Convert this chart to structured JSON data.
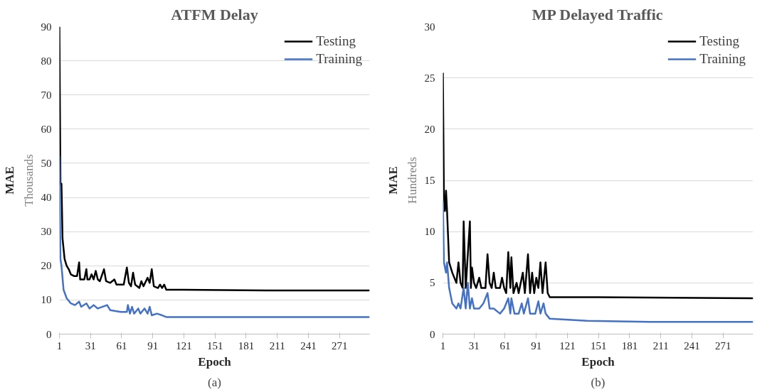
{
  "chart_data": [
    {
      "type": "line",
      "title": "ATFM Delay",
      "xlabel": "Epoch",
      "ylabel": "MAE",
      "annotations": [
        "Thousands",
        "(a)"
      ],
      "xlim": [
        1,
        300
      ],
      "xticks": [
        1,
        31,
        61,
        91,
        121,
        151,
        181,
        211,
        241,
        271
      ],
      "ylim": [
        0,
        90
      ],
      "yticks": [
        0,
        10,
        20,
        30,
        40,
        50,
        60,
        70,
        80,
        90
      ],
      "grid": "y",
      "legend": "top right",
      "series": [
        {
          "name": "Testing",
          "color": "#000000",
          "x": [
            1,
            2,
            3,
            4,
            6,
            8,
            10,
            12,
            15,
            18,
            20,
            21,
            25,
            27,
            28,
            30,
            32,
            34,
            36,
            38,
            40,
            44,
            46,
            50,
            54,
            56,
            60,
            63,
            66,
            68,
            70,
            72,
            74,
            78,
            80,
            82,
            86,
            88,
            90,
            92,
            96,
            98,
            100,
            102,
            104,
            120,
            160,
            200,
            300
          ],
          "values": [
            90,
            44,
            44,
            28,
            22,
            20,
            19,
            17.5,
            17,
            17,
            21,
            16,
            16,
            19,
            16,
            16,
            17.5,
            16,
            18.5,
            16,
            15.5,
            19,
            15.5,
            15,
            16,
            14.5,
            14.5,
            14.5,
            19.5,
            15,
            14,
            18,
            14.5,
            13.5,
            15.5,
            14,
            16.5,
            15,
            19,
            14,
            13.5,
            14.5,
            13.5,
            14.5,
            13,
            13,
            12.9,
            12.8,
            12.8
          ]
        },
        {
          "name": "Training",
          "color": "#4472c4",
          "x": [
            1,
            2,
            3,
            5,
            8,
            12,
            16,
            20,
            22,
            27,
            30,
            34,
            38,
            47,
            50,
            60,
            66,
            67,
            69,
            71,
            73,
            77,
            79,
            83,
            86,
            88,
            90,
            95,
            100,
            104,
            160,
            300
          ],
          "values": [
            52,
            22,
            20,
            13,
            10.5,
            9,
            8.5,
            9.5,
            8,
            9,
            7.5,
            8.5,
            7.5,
            8.5,
            7,
            6.5,
            6.5,
            8.5,
            6,
            8,
            6,
            7.5,
            6,
            7.5,
            6,
            8,
            5.5,
            6,
            5.5,
            5,
            5,
            5
          ]
        }
      ]
    },
    {
      "type": "line",
      "title": "MP Delayed Traffic",
      "xlabel": "Epoch",
      "ylabel": "MAE",
      "annotations": [
        "Hundreds",
        "(b)"
      ],
      "xlim": [
        1,
        300
      ],
      "xticks": [
        1,
        31,
        61,
        91,
        121,
        151,
        181,
        211,
        241,
        271
      ],
      "ylim": [
        0,
        30
      ],
      "yticks": [
        0,
        5,
        10,
        15,
        20,
        25,
        30
      ],
      "grid": "y",
      "legend": "top right",
      "series": [
        {
          "name": "Testing",
          "color": "#000000",
          "x": [
            1,
            2,
            3,
            4,
            5,
            7,
            10,
            14,
            16,
            18,
            20,
            21,
            23,
            27,
            28,
            29,
            31,
            33,
            36,
            38,
            42,
            44,
            46,
            48,
            50,
            52,
            56,
            58,
            60,
            62,
            64,
            66,
            67,
            69,
            72,
            74,
            78,
            80,
            83,
            85,
            87,
            89,
            91,
            93,
            95,
            97,
            100,
            102,
            104,
            150,
            300
          ],
          "values": [
            25.5,
            13,
            12,
            14,
            12,
            7,
            6,
            5,
            7,
            5,
            4.5,
            11,
            4.5,
            11,
            4.5,
            6.5,
            5,
            4.5,
            5.5,
            4.5,
            4.5,
            7.8,
            5,
            4.5,
            6,
            4.5,
            4.5,
            5.5,
            4.5,
            4,
            8,
            4.5,
            7.5,
            4,
            5,
            4,
            6,
            4,
            7.8,
            4,
            6,
            4,
            5.5,
            4.5,
            7,
            4,
            7,
            4,
            3.6,
            3.6,
            3.5
          ]
        },
        {
          "name": "Training",
          "color": "#4472c4",
          "x": [
            1,
            2,
            4,
            5,
            7,
            10,
            14,
            16,
            18,
            21,
            23,
            25,
            27,
            29,
            31,
            36,
            40,
            44,
            46,
            50,
            56,
            60,
            64,
            66,
            67,
            70,
            74,
            77,
            79,
            83,
            85,
            90,
            93,
            95,
            98,
            100,
            104,
            140,
            200,
            300
          ],
          "values": [
            13,
            7,
            6,
            7,
            4.5,
            3,
            2.5,
            3,
            2.5,
            4.5,
            2.5,
            5,
            2.5,
            3.5,
            2.5,
            2.5,
            3,
            4,
            2.5,
            2.5,
            2,
            2.5,
            3.5,
            2,
            3.5,
            2,
            2,
            3,
            2,
            3.5,
            2,
            2,
            3.2,
            2,
            3,
            2,
            1.5,
            1.3,
            1.2,
            1.2
          ]
        }
      ]
    }
  ]
}
